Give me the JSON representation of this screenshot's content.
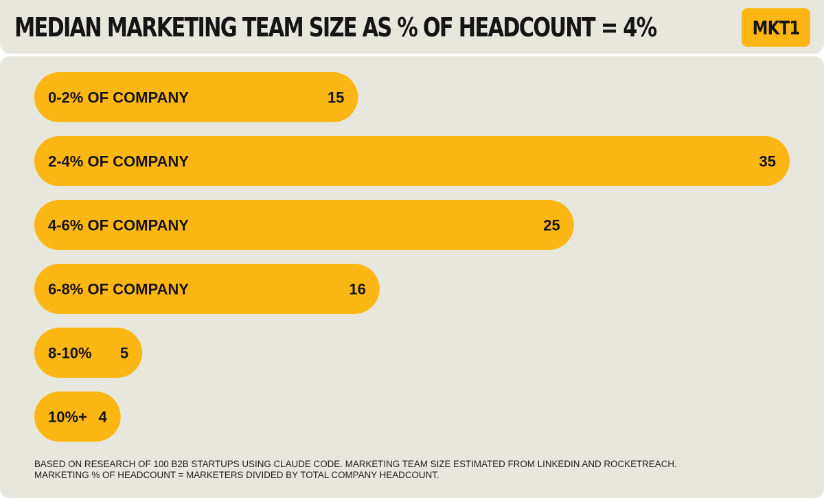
{
  "header": {
    "title": "MEDIAN MARKETING TEAM SIZE AS % OF HEADCOUNT = 4%",
    "logo_text": "MKT1"
  },
  "colors": {
    "bar": "#fdb714",
    "background": "#e8e7de",
    "text": "#141414"
  },
  "chart_data": {
    "type": "bar",
    "orientation": "horizontal",
    "title": "MEDIAN MARKETING TEAM SIZE AS % OF HEADCOUNT = 4%",
    "categories": [
      "0-2% OF COMPANY",
      "2-4% OF COMPANY",
      "4-6% OF COMPANY",
      "6-8% OF COMPANY",
      "8-10%",
      "10%+"
    ],
    "values": [
      15,
      35,
      25,
      16,
      5,
      4
    ],
    "value_labels": [
      "15",
      "35",
      "25",
      "16",
      "5",
      "4"
    ],
    "xlabel": "",
    "ylabel": "",
    "xlim": [
      0,
      35
    ],
    "grid": false,
    "legend": "none"
  },
  "footnote": {
    "line1": "BASED ON RESEARCH OF 100 B2B STARTUPS USING CLAUDE CODE. MARKETING TEAM SIZE ESTIMATED FROM LINKEDIN AND ROCKETREACH.",
    "line2": "MARKETING % OF HEADCOUNT = MARKETERS DIVIDED BY TOTAL COMPANY HEADCOUNT."
  }
}
